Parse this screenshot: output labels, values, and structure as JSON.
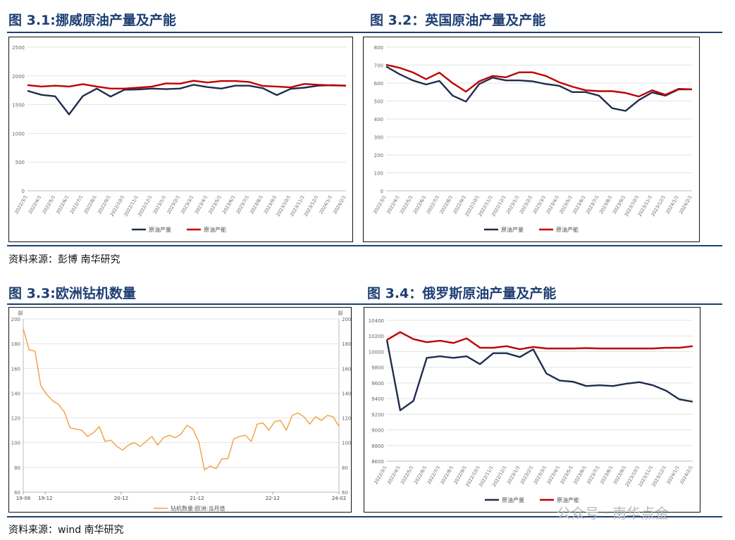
{
  "page": {
    "titles": [
      "图 3.1:挪威原油产量及产能",
      "图 3.2：英国原油产量及产能",
      "图 3.3:欧洲钻机数量",
      "图 3.4：俄罗斯原油产量及产能"
    ],
    "sources": [
      "资料来源：彭博 南华研究",
      "资料来源：wind 南华研究"
    ],
    "watermark": "公众号 · 南华点金",
    "colors": {
      "heading": "#1d3f73",
      "production": "#1f2d4e",
      "capacity": "#c00000",
      "rig": "#f0a040"
    }
  },
  "chart_data": [
    {
      "type": "line",
      "title": "图 3.1:挪威原油产量及产能",
      "categories": [
        "2022/3/1",
        "2022/4/1",
        "2022/5/1",
        "2022/6/1",
        "2022/7/1",
        "2022/8/1",
        "2022/9/1",
        "2022/10/1",
        "2022/11/1",
        "2022/12/1",
        "2023/1/1",
        "2023/2/1",
        "2023/3/1",
        "2023/4/1",
        "2023/5/1",
        "2023/6/1",
        "2023/7/1",
        "2023/8/1",
        "2023/9/1",
        "2023/10/1",
        "2023/11/1",
        "2023/12/1",
        "2024/1/1",
        "2024/2/1"
      ],
      "series": [
        {
          "name": "原油产量",
          "color": "#1f2d4e",
          "values": [
            1740,
            1670,
            1645,
            1330,
            1650,
            1780,
            1640,
            1760,
            1765,
            1780,
            1770,
            1780,
            1845,
            1805,
            1780,
            1830,
            1830,
            1785,
            1665,
            1775,
            1795,
            1830,
            1840,
            1830
          ]
        },
        {
          "name": "原油产能",
          "color": "#c00000",
          "values": [
            1840,
            1815,
            1830,
            1815,
            1855,
            1815,
            1780,
            1780,
            1795,
            1815,
            1870,
            1865,
            1915,
            1885,
            1910,
            1910,
            1895,
            1825,
            1815,
            1800,
            1860,
            1845,
            1835,
            1830
          ]
        }
      ],
      "yticks": [
        "0",
        "500",
        "1000",
        "1500",
        "2000",
        "2500"
      ],
      "ylim": [
        0,
        2500
      ],
      "legend": "bottom-center",
      "grid": true
    },
    {
      "type": "line",
      "title": "图 3.2：英国原油产量及产能",
      "categories": [
        "2022/3/1",
        "2022/4/1",
        "2022/5/1",
        "2022/6/1",
        "2022/7/1",
        "2022/8/1",
        "2022/9/1",
        "2022/10/1",
        "2022/11/1",
        "2022/12/1",
        "2023/1/1",
        "2023/2/1",
        "2023/3/1",
        "2023/4/1",
        "2023/5/1",
        "2023/6/1",
        "2023/7/1",
        "2023/8/1",
        "2023/9/1",
        "2023/10/1",
        "2023/11/1",
        "2023/12/1",
        "2024/1/1",
        "2024/2/1"
      ],
      "series": [
        {
          "name": "原油产量",
          "color": "#1f2d4e",
          "values": [
            692,
            650,
            615,
            592,
            612,
            530,
            497,
            595,
            630,
            615,
            615,
            610,
            595,
            585,
            550,
            550,
            530,
            460,
            445,
            505,
            548,
            530,
            565,
            565
          ]
        },
        {
          "name": "原油产能",
          "color": "#c00000",
          "values": [
            702,
            685,
            660,
            622,
            658,
            600,
            552,
            610,
            640,
            632,
            660,
            660,
            640,
            605,
            580,
            560,
            555,
            555,
            545,
            525,
            560,
            535,
            568,
            565
          ]
        }
      ],
      "yticks": [
        "0",
        "100",
        "200",
        "300",
        "400",
        "500",
        "600",
        "700",
        "800"
      ],
      "ylim": [
        0,
        800
      ],
      "legend": "bottom-center",
      "grid": true
    },
    {
      "type": "line",
      "title": "图 3.3:欧洲钻机数量",
      "unit_label": "部",
      "xticks": [
        "19-08",
        "19-12",
        "20-12",
        "21-12",
        "22-12",
        "24-02"
      ],
      "series": [
        {
          "name": "钻机数量:欧洲:当月值",
          "color": "#f0a040",
          "values": [
            192,
            175,
            174,
            146,
            139,
            134,
            131,
            125,
            112,
            111,
            110,
            105,
            108,
            113,
            101,
            102,
            97,
            94,
            98,
            100,
            97,
            101,
            105,
            98,
            104,
            106,
            104,
            107,
            114,
            111,
            101,
            78,
            81,
            79,
            87,
            87,
            103,
            105,
            106,
            101,
            115,
            116,
            110,
            117,
            118,
            110,
            122,
            124,
            121,
            115,
            121,
            118,
            122,
            121,
            113
          ]
        }
      ],
      "yticks": [
        "60",
        "80",
        "100",
        "120",
        "140",
        "160",
        "180",
        "200"
      ],
      "ylim": [
        60,
        200
      ],
      "legend": "bottom-center",
      "grid": true
    },
    {
      "type": "line",
      "title": "图 3.4：俄罗斯原油产量及产能",
      "categories": [
        "2022/3/1",
        "2022/4/1",
        "2022/5/1",
        "2022/6/1",
        "2022/7/1",
        "2022/8/1",
        "2022/9/1",
        "2022/10/1",
        "2022/11/1",
        "2022/12/1",
        "2023/1/1",
        "2023/2/1",
        "2023/3/1",
        "2023/4/1",
        "2023/5/1",
        "2023/6/1",
        "2023/7/1",
        "2023/8/1",
        "2023/9/1",
        "2023/10/1",
        "2023/11/1",
        "2023/12/1",
        "2024/1/1",
        "2024/2/1"
      ],
      "series": [
        {
          "name": "原油产量",
          "color": "#1f2d4e",
          "values": [
            10150,
            9250,
            9370,
            9920,
            9940,
            9920,
            9940,
            9840,
            9980,
            9980,
            9930,
            10030,
            9720,
            9630,
            9615,
            9560,
            9570,
            9560,
            9590,
            9610,
            9570,
            9500,
            9390,
            9360
          ]
        },
        {
          "name": "原油产能",
          "color": "#c00000",
          "values": [
            10150,
            10250,
            10160,
            10120,
            10140,
            10110,
            10170,
            10050,
            10050,
            10070,
            10030,
            10060,
            10040,
            10040,
            10040,
            10045,
            10040,
            10040,
            10040,
            10040,
            10040,
            10050,
            10050,
            10070
          ]
        }
      ],
      "yticks": [
        "8600",
        "8800",
        "9000",
        "9200",
        "9400",
        "9600",
        "9800",
        "10000",
        "10200",
        "10400"
      ],
      "ylim": [
        8600,
        10400
      ],
      "legend": "bottom-center",
      "grid": true
    }
  ]
}
